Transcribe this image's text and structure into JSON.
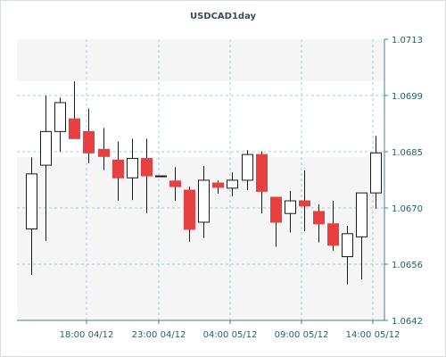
{
  "chart_data": {
    "type": "candlestick",
    "title": "USDCAD1day",
    "y_ticks": [
      "1.0713",
      "1.0699",
      "1.0685",
      "1.0670",
      "1.0656",
      "1.0642"
    ],
    "x_ticks": [
      "18:00 04/12",
      "23:00 04/12",
      "04:00 05/12",
      "09:00 05/12",
      "14:00 05/12"
    ],
    "ylim": [
      1.0642,
      1.0713
    ],
    "grid": true,
    "colors": {
      "up_body": "#ffffff",
      "down_body": "#e84040",
      "outline": "#1a1a1a",
      "grid": "#9fd0d6",
      "plot_bg": "#f5f5f5",
      "band_bg": "#ffffff"
    },
    "candles": [
      {
        "open": 1.06651,
        "high": 1.06832,
        "low": 1.06535,
        "close": 1.0679
      },
      {
        "open": 1.06812,
        "high": 1.06988,
        "low": 1.06621,
        "close": 1.06897
      },
      {
        "open": 1.06897,
        "high": 1.06983,
        "low": 1.06846,
        "close": 1.0697
      },
      {
        "open": 1.06929,
        "high": 1.07024,
        "low": 1.06879,
        "close": 1.06879
      },
      {
        "open": 1.06897,
        "high": 1.06955,
        "low": 1.06817,
        "close": 1.06843
      },
      {
        "open": 1.06852,
        "high": 1.06906,
        "low": 1.068,
        "close": 1.06834
      },
      {
        "open": 1.06825,
        "high": 1.06872,
        "low": 1.06722,
        "close": 1.0678
      },
      {
        "open": 1.0678,
        "high": 1.06879,
        "low": 1.06724,
        "close": 1.06829
      },
      {
        "open": 1.06829,
        "high": 1.06879,
        "low": 1.06691,
        "close": 1.06785
      },
      {
        "open": 1.06785,
        "high": 1.06785,
        "low": 1.06785,
        "close": 1.06785
      },
      {
        "open": 1.06772,
        "high": 1.06807,
        "low": 1.06722,
        "close": 1.06758
      },
      {
        "open": 1.06749,
        "high": 1.06758,
        "low": 1.06619,
        "close": 1.0665
      },
      {
        "open": 1.06668,
        "high": 1.0681,
        "low": 1.06628,
        "close": 1.06774
      },
      {
        "open": 1.06767,
        "high": 1.06774,
        "low": 1.0674,
        "close": 1.06756
      },
      {
        "open": 1.06754,
        "high": 1.06794,
        "low": 1.06734,
        "close": 1.06774
      },
      {
        "open": 1.06774,
        "high": 1.0685,
        "low": 1.06749,
        "close": 1.06839
      },
      {
        "open": 1.06839,
        "high": 1.06847,
        "low": 1.0669,
        "close": 1.06746
      },
      {
        "open": 1.06731,
        "high": 1.06731,
        "low": 1.06606,
        "close": 1.06668
      },
      {
        "open": 1.0669,
        "high": 1.06747,
        "low": 1.06642,
        "close": 1.06722
      },
      {
        "open": 1.06722,
        "high": 1.06799,
        "low": 1.06645,
        "close": 1.06709
      },
      {
        "open": 1.06695,
        "high": 1.06713,
        "low": 1.06617,
        "close": 1.06664
      },
      {
        "open": 1.06664,
        "high": 1.06722,
        "low": 1.06596,
        "close": 1.0661
      },
      {
        "open": 1.06581,
        "high": 1.06659,
        "low": 1.06511,
        "close": 1.06639
      },
      {
        "open": 1.06631,
        "high": 1.06742,
        "low": 1.06523,
        "close": 1.06742
      },
      {
        "open": 1.06742,
        "high": 1.06886,
        "low": 1.06702,
        "close": 1.06843
      }
    ]
  }
}
